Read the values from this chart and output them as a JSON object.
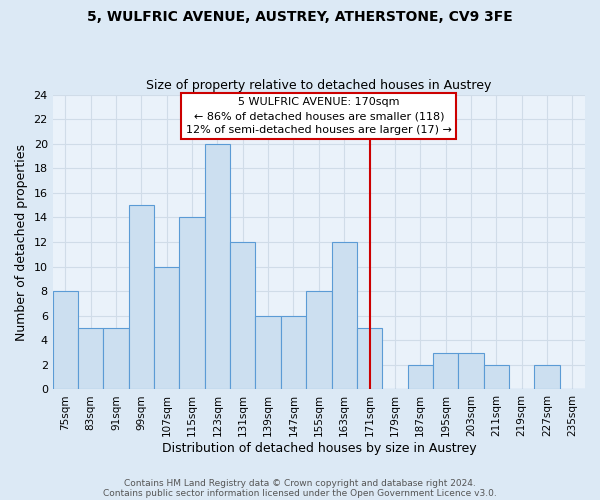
{
  "title": "5, WULFRIC AVENUE, AUSTREY, ATHERSTONE, CV9 3FE",
  "subtitle": "Size of property relative to detached houses in Austrey",
  "xlabel": "Distribution of detached houses by size in Austrey",
  "ylabel": "Number of detached properties",
  "bin_labels": [
    "75sqm",
    "83sqm",
    "91sqm",
    "99sqm",
    "107sqm",
    "115sqm",
    "123sqm",
    "131sqm",
    "139sqm",
    "147sqm",
    "155sqm",
    "163sqm",
    "171sqm",
    "179sqm",
    "187sqm",
    "195sqm",
    "203sqm",
    "211sqm",
    "219sqm",
    "227sqm",
    "235sqm"
  ],
  "bar_values": [
    8,
    5,
    5,
    15,
    10,
    14,
    20,
    12,
    6,
    6,
    8,
    12,
    5,
    0,
    2,
    3,
    3,
    2,
    0,
    2,
    0
  ],
  "bar_color": "#ccdff0",
  "bar_edge_color": "#5b9bd5",
  "grid_color": "#d0dce8",
  "plot_bg_color": "#eaf2fa",
  "fig_bg_color": "#dce9f5",
  "vline_color": "#cc0000",
  "annotation_title": "5 WULFRIC AVENUE: 170sqm",
  "annotation_line1": "← 86% of detached houses are smaller (118)",
  "annotation_line2": "12% of semi-detached houses are larger (17) →",
  "ylim": [
    0,
    24
  ],
  "yticks": [
    0,
    2,
    4,
    6,
    8,
    10,
    12,
    14,
    16,
    18,
    20,
    22,
    24
  ],
  "footer_line1": "Contains HM Land Registry data © Crown copyright and database right 2024.",
  "footer_line2": "Contains public sector information licensed under the Open Government Licence v3.0."
}
